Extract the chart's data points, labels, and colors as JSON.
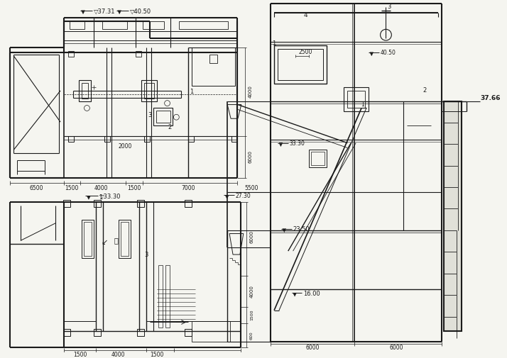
{
  "bg_color": "#f5f5f0",
  "line_color": "#1a1a1a",
  "fig_width": 7.14,
  "fig_height": 5.05,
  "dpi": 100,
  "labels": {
    "el_3731": "▽37.31",
    "el_4050_left": "▽40.50",
    "el_3330": "▽33.30",
    "el_2730": "27.30",
    "el_2350": "23.50",
    "el_1600": "16.00",
    "el_3766": "37.66",
    "el_4050_right": "40.50",
    "el_3330_right": "33.30",
    "dim_6500": "6500",
    "dim_1500a": "1500",
    "dim_4000": "4000",
    "dim_1500b": "1500",
    "dim_7000": "7000",
    "dim_5500": "5500",
    "dim_2000": "2000",
    "dim_6000a": "6000",
    "dim_6000b": "6000",
    "dim_6000c": "6000",
    "dim_4000c": "4000",
    "dim_1500c": "1500",
    "dim_4000d": "4000",
    "dim_1500d": "1500",
    "dim_2500": "2500",
    "dim_6000_r": "6000",
    "dim_6000_r2": "6000",
    "num_1": "1",
    "num_2": "2",
    "num_3": "3",
    "num_4": "4"
  }
}
